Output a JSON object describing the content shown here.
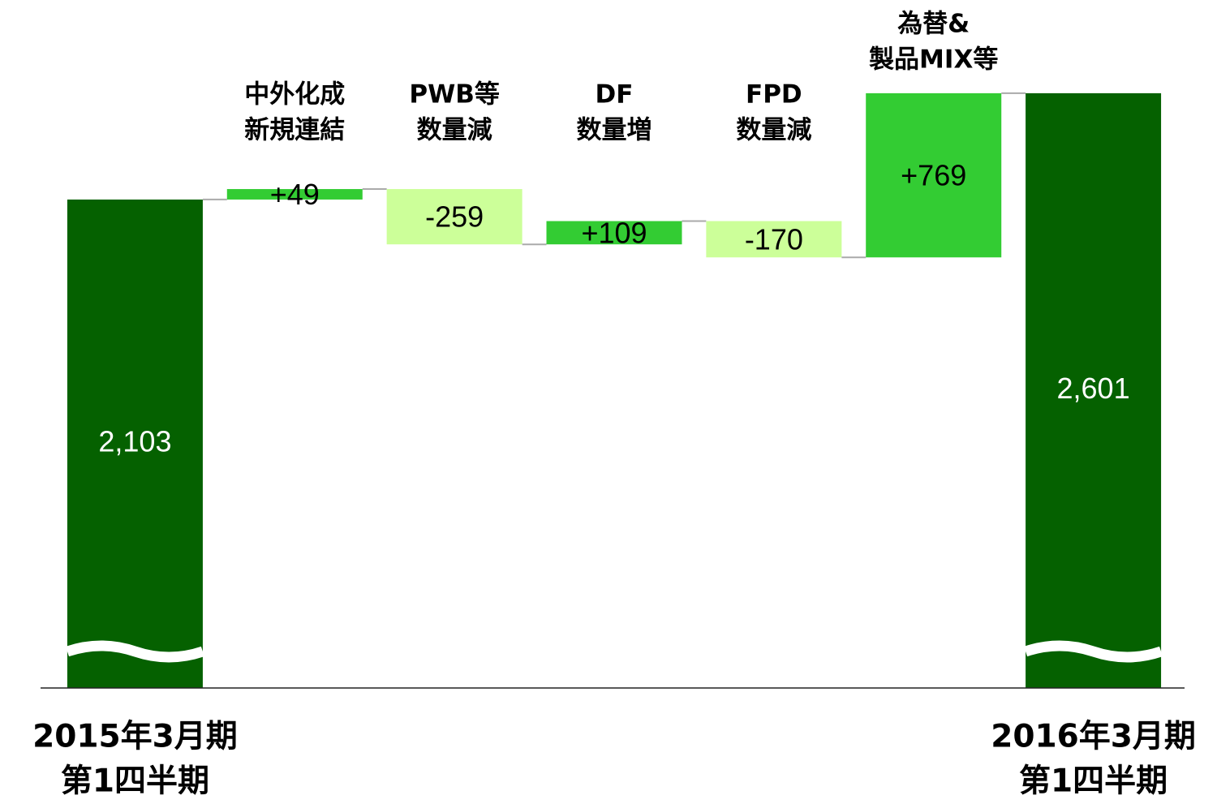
{
  "chart_data": {
    "type": "waterfall",
    "categories": [
      [
        "2015年3月期",
        "第1四半期"
      ],
      [
        "中外化成",
        "新規連結"
      ],
      [
        "PWB等",
        "数量減"
      ],
      [
        "DF",
        "数量増"
      ],
      [
        "FPD",
        "数量減"
      ],
      [
        "為替&",
        "製品MIX等"
      ],
      [
        "2016年3月期",
        "第1四半期"
      ]
    ],
    "values": [
      2103,
      49,
      -259,
      109,
      -170,
      769,
      2601
    ],
    "value_labels": [
      "2,103",
      "+49",
      "-259",
      "+109",
      "-170",
      "+769",
      "2,601"
    ],
    "is_total": [
      true,
      false,
      false,
      false,
      false,
      false,
      true
    ],
    "colors": {
      "total": "#056100",
      "increase": "#33cc33",
      "decrease": "#ccff99"
    },
    "ylim": [
      -185,
      2650
    ],
    "axis_break": true
  }
}
